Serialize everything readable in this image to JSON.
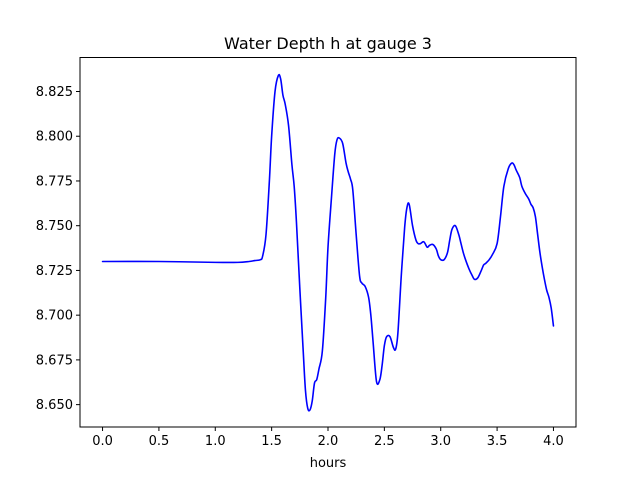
{
  "chart_data": {
    "type": "line",
    "title": "Water Depth h at gauge 3",
    "xlabel": "hours",
    "ylabel": "",
    "xlim": [
      -0.2,
      4.2
    ],
    "ylim": [
      8.6375,
      8.844
    ],
    "xticks": [
      0.0,
      0.5,
      1.0,
      1.5,
      2.0,
      2.5,
      3.0,
      3.5,
      4.0
    ],
    "xtick_labels": [
      "0.0",
      "0.5",
      "1.0",
      "1.5",
      "2.0",
      "2.5",
      "3.0",
      "3.5",
      "4.0"
    ],
    "yticks": [
      8.65,
      8.675,
      8.7,
      8.725,
      8.75,
      8.775,
      8.8,
      8.825
    ],
    "ytick_labels": [
      "8.650",
      "8.675",
      "8.700",
      "8.725",
      "8.750",
      "8.775",
      "8.800",
      "8.825"
    ],
    "grid": false,
    "series": [
      {
        "name": "",
        "color": "#0000ff",
        "x": [
          0.0,
          0.5,
          1.0,
          1.2,
          1.3,
          1.35,
          1.4,
          1.42,
          1.45,
          1.48,
          1.5,
          1.53,
          1.56,
          1.58,
          1.6,
          1.62,
          1.65,
          1.68,
          1.7,
          1.72,
          1.75,
          1.78,
          1.8,
          1.82,
          1.84,
          1.86,
          1.88,
          1.9,
          1.92,
          1.95,
          1.98,
          2.0,
          2.03,
          2.06,
          2.08,
          2.1,
          2.13,
          2.16,
          2.18,
          2.2,
          2.22,
          2.25,
          2.28,
          2.3,
          2.33,
          2.36,
          2.38,
          2.4,
          2.43,
          2.46,
          2.48,
          2.5,
          2.52,
          2.55,
          2.58,
          2.6,
          2.62,
          2.65,
          2.68,
          2.7,
          2.72,
          2.75,
          2.78,
          2.8,
          2.82,
          2.85,
          2.88,
          2.9,
          2.93,
          2.96,
          2.98,
          3.0,
          3.03,
          3.06,
          3.08,
          3.1,
          3.13,
          3.16,
          3.18,
          3.2,
          3.22,
          3.25,
          3.28,
          3.3,
          3.33,
          3.36,
          3.38,
          3.4,
          3.43,
          3.46,
          3.5,
          3.53,
          3.56,
          3.6,
          3.63,
          3.65,
          3.67,
          3.7,
          3.72,
          3.75,
          3.78,
          3.8,
          3.82,
          3.84,
          3.86,
          3.88,
          3.9,
          3.92,
          3.94,
          3.96,
          3.98,
          4.0
        ],
        "y": [
          8.73,
          8.73,
          8.7295,
          8.7295,
          8.73,
          8.7305,
          8.731,
          8.733,
          8.745,
          8.775,
          8.8,
          8.825,
          8.834,
          8.832,
          8.823,
          8.818,
          8.806,
          8.784,
          8.772,
          8.752,
          8.715,
          8.68,
          8.658,
          8.648,
          8.647,
          8.652,
          8.662,
          8.664,
          8.67,
          8.68,
          8.71,
          8.738,
          8.765,
          8.79,
          8.798,
          8.799,
          8.796,
          8.785,
          8.78,
          8.776,
          8.77,
          8.745,
          8.722,
          8.718,
          8.716,
          8.71,
          8.7,
          8.685,
          8.663,
          8.664,
          8.672,
          8.683,
          8.688,
          8.688,
          8.682,
          8.681,
          8.69,
          8.722,
          8.749,
          8.76,
          8.762,
          8.75,
          8.742,
          8.74,
          8.74,
          8.741,
          8.738,
          8.739,
          8.7395,
          8.737,
          8.733,
          8.731,
          8.731,
          8.735,
          8.742,
          8.748,
          8.75,
          8.745,
          8.74,
          8.735,
          8.731,
          8.726,
          8.722,
          8.72,
          8.721,
          8.725,
          8.728,
          8.729,
          8.731,
          8.734,
          8.74,
          8.755,
          8.772,
          8.782,
          8.785,
          8.784,
          8.781,
          8.777,
          8.772,
          8.768,
          8.765,
          8.762,
          8.76,
          8.755,
          8.745,
          8.735,
          8.727,
          8.72,
          8.714,
          8.71,
          8.704,
          8.694
        ]
      }
    ]
  }
}
